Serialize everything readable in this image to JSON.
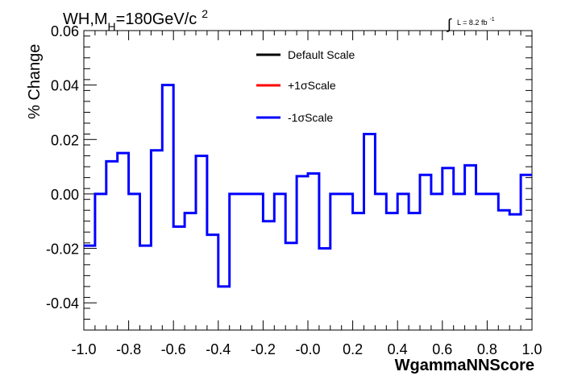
{
  "chart_data": {
    "type": "line",
    "title_main": "WH,M",
    "title_sub": "H",
    "title_rest": "=180GeV/c",
    "title_sup": "2",
    "lumi_prefix": "L = 8.2 fb",
    "lumi_sup": "-1",
    "lumi_symbol": "∫",
    "xlabel": "WgammaNNScore",
    "ylabel": "% Change",
    "xlim": [
      -1.0,
      1.0
    ],
    "ylim": [
      -0.05,
      0.06
    ],
    "xticks": [
      -1.0,
      -0.8,
      -0.6,
      -0.4,
      -0.2,
      0.0,
      0.2,
      0.4,
      0.6,
      0.8,
      1.0
    ],
    "xtick_labels": [
      "-1.0",
      "-0.8",
      "-0.6",
      "-0.4",
      "-0.2",
      "-0.0",
      "0.2",
      "0.4",
      "0.6",
      "0.8",
      "1.0"
    ],
    "yticks": [
      -0.04,
      -0.02,
      0.0,
      0.02,
      0.04,
      0.06
    ],
    "ytick_labels": [
      "-0.04",
      "-0.02",
      "0.00",
      "0.02",
      "0.04",
      "0.06"
    ],
    "legend": [
      {
        "label": "Default Scale",
        "color": "#000000"
      },
      {
        "label": "+1σScale",
        "color": "#ff0000"
      },
      {
        "label": "-1σScale",
        "color": "#0000ff"
      }
    ],
    "bin_edges": [
      -1.0,
      -0.95,
      -0.9,
      -0.85,
      -0.8,
      -0.75,
      -0.7,
      -0.65,
      -0.6,
      -0.55,
      -0.5,
      -0.45,
      -0.4,
      -0.35,
      -0.3,
      -0.25,
      -0.2,
      -0.15,
      -0.1,
      -0.05,
      0.0,
      0.05,
      0.1,
      0.15,
      0.2,
      0.25,
      0.3,
      0.35,
      0.4,
      0.45,
      0.5,
      0.55,
      0.6,
      0.65,
      0.7,
      0.75,
      0.8,
      0.85,
      0.9,
      0.95,
      1.0
    ],
    "series": [
      {
        "name": "-1σScale",
        "color": "#0000ff",
        "values": [
          -0.019,
          0.0,
          0.012,
          0.015,
          0.0,
          -0.019,
          0.016,
          0.04,
          -0.012,
          -0.007,
          0.014,
          -0.015,
          -0.034,
          0.0,
          0.0,
          0.0,
          -0.01,
          0.0,
          -0.018,
          0.0065,
          0.0075,
          -0.02,
          0.0,
          0.0,
          -0.007,
          0.022,
          0.0,
          -0.007,
          0.0,
          -0.007,
          0.007,
          0.0,
          0.0095,
          0.0,
          0.0105,
          0.0,
          0.0,
          -0.006,
          -0.0075,
          0.007
        ]
      }
    ],
    "grid": false
  }
}
